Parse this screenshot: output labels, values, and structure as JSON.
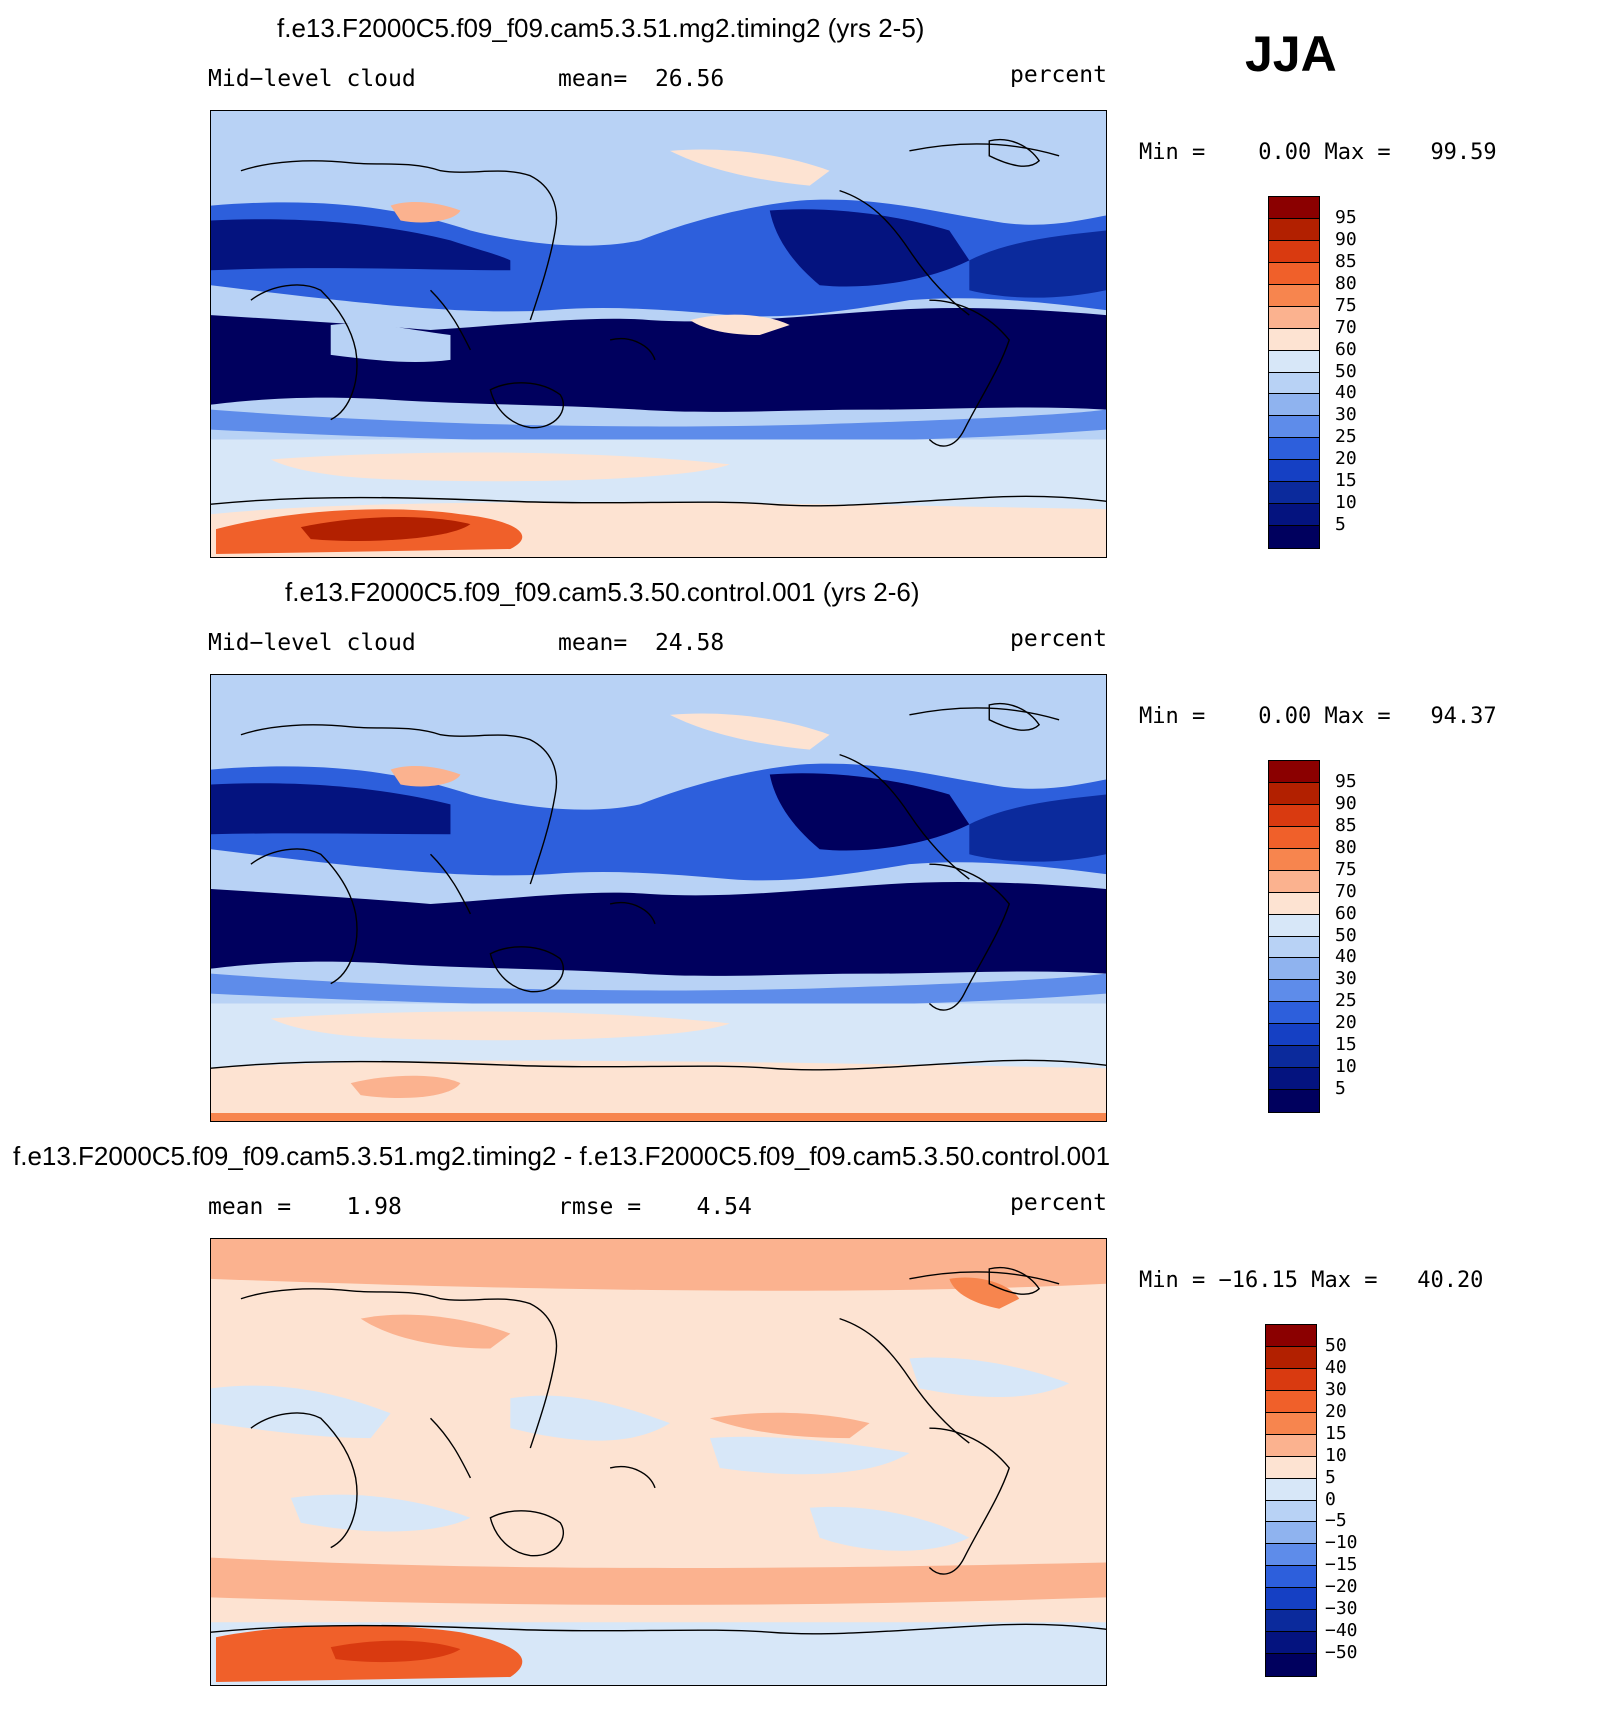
{
  "season": "JJA",
  "panels": [
    {
      "title": "f.e13.F2000C5.f09_f09.cam5.3.51.mg2.timing2 (yrs 2-5)",
      "left_label": "Mid−level cloud",
      "stat_label": "mean=",
      "stat_value": "26.56",
      "units": "percent",
      "min_label": "Min =",
      "min_value": "0.00",
      "max_label": "Max =",
      "max_value": "99.59",
      "colorbar_labels": [
        "95",
        "90",
        "85",
        "80",
        "75",
        "70",
        "60",
        "50",
        "40",
        "30",
        "25",
        "20",
        "15",
        "10",
        "5"
      ]
    },
    {
      "title": "f.e13.F2000C5.f09_f09.cam5.3.50.control.001 (yrs 2-6)",
      "left_label": "Mid−level cloud",
      "stat_label": "mean=",
      "stat_value": "24.58",
      "units": "percent",
      "min_label": "Min =",
      "min_value": "0.00",
      "max_label": "Max =",
      "max_value": "94.37",
      "colorbar_labels": [
        "95",
        "90",
        "85",
        "80",
        "75",
        "70",
        "60",
        "50",
        "40",
        "30",
        "25",
        "20",
        "15",
        "10",
        "5"
      ]
    },
    {
      "title": "f.e13.F2000C5.f09_f09.cam5.3.51.mg2.timing2 - f.e13.F2000C5.f09_f09.cam5.3.50.control.001",
      "left_label": "mean =",
      "left_value": "1.98",
      "stat_label": "rmse =",
      "stat_value": "4.54",
      "units": "percent",
      "min_label": "Min =",
      "min_value": "−16.15",
      "max_label": "Max =",
      "max_value": "40.20",
      "colorbar_labels": [
        "50",
        "40",
        "30",
        "20",
        "15",
        "10",
        "5",
        "0",
        "−5",
        "−10",
        "−15",
        "−20",
        "−30",
        "−40",
        "−50"
      ]
    }
  ],
  "colors": {
    "scale": [
      "#8b0000",
      "#b22000",
      "#d93a10",
      "#f0602a",
      "#f7854e",
      "#fbb28f",
      "#fde3d2",
      "#d7e7f8",
      "#b8d2f5",
      "#8fb3ef",
      "#5e8cea",
      "#2d5fdc",
      "#1540c4",
      "#0b2a9c",
      "#04137f",
      "#00005e"
    ],
    "ocean_base": "#d7e7f8",
    "diff_base": "#fde3d2"
  }
}
